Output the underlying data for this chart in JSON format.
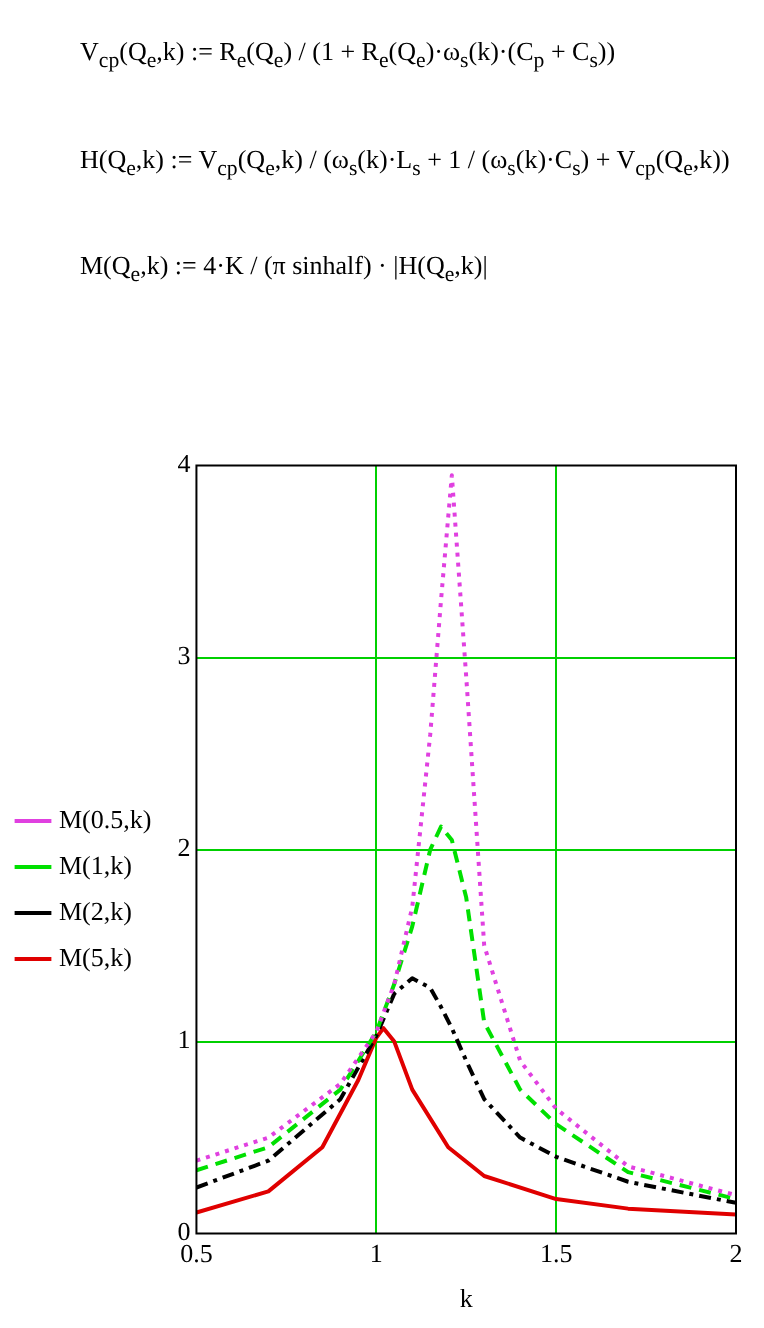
{
  "chart_data": {
    "type": "line",
    "annotations": [
      "V$_{cp}$(Q$_{e}$,k) := R$_{e}$(Q$_{e}$) / (1 + R$_{e}$(Q$_{e}$)·ω$_{s}$(k)·(C$_{p}$ + C$_{s}$))",
      "H(Q$_{e}$,k) := V$_{cp}$(Q$_{e}$,k) / (ω$_{s}$(k)·L$_{s}$ + 1 / (ω$_{s}$(k)·C$_{s}$) + V$_{cp}$(Q$_{e}$,k))",
      "M(Q$_{e}$,k) := 4·K / (π sinhalf) · |H(Q$_{e}$,k)|"
    ],
    "xlabel": "k",
    "x": [
      0.5,
      0.7,
      0.9,
      1.0,
      1.05,
      1.1,
      1.15,
      1.18,
      1.21,
      1.25,
      1.3,
      1.4,
      1.5,
      1.7,
      2.0
    ],
    "series": [
      {
        "name": "M(0.5,k)",
        "color": "#e040e0",
        "line_style": "dotted",
        "values": [
          0.38,
          0.5,
          0.78,
          1.05,
          1.3,
          1.7,
          2.6,
          3.3,
          3.95,
          2.9,
          1.5,
          0.9,
          0.65,
          0.35,
          0.2
        ]
      },
      {
        "name": "M(1,k)",
        "color": "#00e000",
        "line_style": "dashed",
        "values": [
          0.33,
          0.45,
          0.75,
          1.05,
          1.3,
          1.6,
          2.0,
          2.12,
          2.05,
          1.75,
          1.1,
          0.75,
          0.57,
          0.32,
          0.18
        ]
      },
      {
        "name": "M(2,k)",
        "color": "#000000",
        "line_style": "dashdot",
        "values": [
          0.24,
          0.38,
          0.7,
          1.03,
          1.25,
          1.33,
          1.28,
          1.18,
          1.07,
          0.9,
          0.7,
          0.5,
          0.4,
          0.27,
          0.16
        ]
      },
      {
        "name": "M(5,k)",
        "color": "#e00000",
        "line_style": "solid",
        "x": [
          0.5,
          0.7,
          0.85,
          0.95,
          1.0,
          1.02,
          1.05,
          1.1,
          1.2,
          1.3,
          1.5,
          1.7,
          2.0
        ],
        "values": [
          0.11,
          0.22,
          0.45,
          0.8,
          1.02,
          1.07,
          1.0,
          0.75,
          0.45,
          0.3,
          0.18,
          0.13,
          0.1
        ]
      }
    ],
    "xlim": [
      0.5,
      2
    ],
    "xticks": [
      0.5,
      1,
      1.5,
      2
    ],
    "ylim": [
      0,
      4
    ],
    "yticks": [
      0,
      1,
      2,
      3,
      4
    ],
    "grid": true,
    "legend": "left",
    "marker": "none"
  }
}
